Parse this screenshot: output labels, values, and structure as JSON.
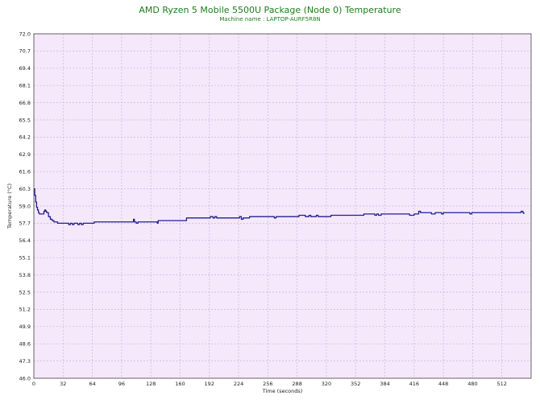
{
  "chart_data": {
    "type": "line",
    "title": "AMD Ryzen 5 Mobile 5500U Package (Node 0) Temperature",
    "subtitle": "Machine name : LAPTOP-AURF5R8N",
    "xlabel": "Time (seconds)",
    "ylabel": "Temperature (°C)",
    "xlim": [
      0,
      544
    ],
    "ylim": [
      46.0,
      72.0
    ],
    "x_ticks": [
      0,
      32,
      64,
      96,
      128,
      160,
      192,
      224,
      256,
      288,
      320,
      352,
      384,
      416,
      448,
      480,
      512
    ],
    "y_ticks": [
      "46.0",
      "47.3",
      "48.6",
      "49.9",
      "51.2",
      "52.5",
      "53.8",
      "55.1",
      "56.4",
      "57.7",
      "59.0",
      "60.3",
      "61.6",
      "62.9",
      "64.2",
      "65.5",
      "66.8",
      "68.1",
      "69.4",
      "70.7",
      "72.0"
    ],
    "grid": true,
    "colors": {
      "background": "#f5e8fb",
      "grid": "#c9b8cf",
      "line": "#1f1f8f",
      "title": "#1a7f1a"
    },
    "series": [
      {
        "values": [
          [
            0,
            60.3
          ],
          [
            1,
            59.8
          ],
          [
            2,
            59.3
          ],
          [
            3,
            58.9
          ],
          [
            4,
            58.7
          ],
          [
            5,
            58.5
          ],
          [
            6,
            58.4
          ],
          [
            8,
            58.4
          ],
          [
            10,
            58.4
          ],
          [
            11,
            58.6
          ],
          [
            12,
            58.7
          ],
          [
            13,
            58.6
          ],
          [
            14,
            58.5
          ],
          [
            16,
            58.2
          ],
          [
            18,
            58.0
          ],
          [
            20,
            57.9
          ],
          [
            22,
            57.8
          ],
          [
            24,
            57.8
          ],
          [
            26,
            57.7
          ],
          [
            30,
            57.7
          ],
          [
            36,
            57.7
          ],
          [
            38,
            57.6
          ],
          [
            40,
            57.7
          ],
          [
            42,
            57.6
          ],
          [
            44,
            57.7
          ],
          [
            46,
            57.7
          ],
          [
            48,
            57.6
          ],
          [
            50,
            57.7
          ],
          [
            52,
            57.6
          ],
          [
            54,
            57.7
          ],
          [
            60,
            57.7
          ],
          [
            64,
            57.7
          ],
          [
            66,
            57.8
          ],
          [
            80,
            57.8
          ],
          [
            96,
            57.8
          ],
          [
            108,
            57.8
          ],
          [
            109,
            58.0
          ],
          [
            110,
            57.8
          ],
          [
            112,
            57.7
          ],
          [
            114,
            57.8
          ],
          [
            128,
            57.8
          ],
          [
            134,
            57.8
          ],
          [
            135,
            57.7
          ],
          [
            136,
            57.9
          ],
          [
            150,
            57.9
          ],
          [
            160,
            57.9
          ],
          [
            166,
            57.9
          ],
          [
            167,
            58.1
          ],
          [
            192,
            58.1
          ],
          [
            193,
            58.2
          ],
          [
            196,
            58.1
          ],
          [
            198,
            58.2
          ],
          [
            200,
            58.1
          ],
          [
            224,
            58.1
          ],
          [
            225,
            58.2
          ],
          [
            227,
            58.0
          ],
          [
            229,
            58.1
          ],
          [
            235,
            58.1
          ],
          [
            236,
            58.2
          ],
          [
            256,
            58.2
          ],
          [
            262,
            58.2
          ],
          [
            263,
            58.1
          ],
          [
            265,
            58.2
          ],
          [
            288,
            58.2
          ],
          [
            290,
            58.3
          ],
          [
            296,
            58.3
          ],
          [
            297,
            58.2
          ],
          [
            300,
            58.2
          ],
          [
            301,
            58.3
          ],
          [
            303,
            58.2
          ],
          [
            308,
            58.2
          ],
          [
            309,
            58.3
          ],
          [
            311,
            58.2
          ],
          [
            320,
            58.2
          ],
          [
            324,
            58.2
          ],
          [
            325,
            58.3
          ],
          [
            352,
            58.3
          ],
          [
            360,
            58.3
          ],
          [
            361,
            58.4
          ],
          [
            372,
            58.4
          ],
          [
            373,
            58.3
          ],
          [
            375,
            58.4
          ],
          [
            377,
            58.3
          ],
          [
            380,
            58.4
          ],
          [
            384,
            58.4
          ],
          [
            410,
            58.4
          ],
          [
            411,
            58.3
          ],
          [
            415,
            58.3
          ],
          [
            416,
            58.4
          ],
          [
            420,
            58.4
          ],
          [
            421,
            58.6
          ],
          [
            423,
            58.5
          ],
          [
            434,
            58.5
          ],
          [
            435,
            58.4
          ],
          [
            438,
            58.4
          ],
          [
            439,
            58.5
          ],
          [
            445,
            58.5
          ],
          [
            446,
            58.4
          ],
          [
            448,
            58.5
          ],
          [
            476,
            58.5
          ],
          [
            477,
            58.4
          ],
          [
            479,
            58.5
          ],
          [
            512,
            58.5
          ],
          [
            532,
            58.5
          ],
          [
            533,
            58.6
          ],
          [
            535,
            58.5
          ],
          [
            536,
            58.4
          ]
        ]
      }
    ]
  }
}
